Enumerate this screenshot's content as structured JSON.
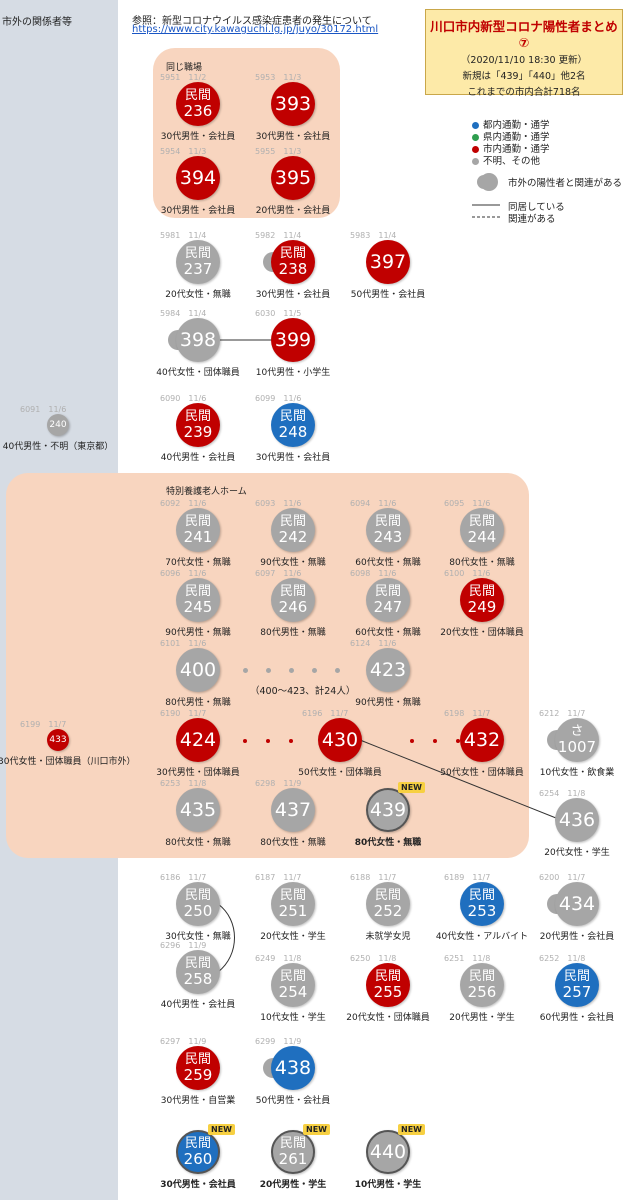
{
  "sidebar": {
    "title": "市外の関係者等"
  },
  "reference": {
    "label": "参照：新型コロナウイルス感染症患者の発生について",
    "url": "https://www.city.kawaguchi.lg.jp/juyo/30172.html"
  },
  "header": {
    "title": "川口市内新型コロナ陽性者まとめ⑦",
    "updated": "（2020/11/10 18:30 更新）",
    "new_line": "新規は「439」「440」他2名",
    "total_line": "これまでの市内合計718名"
  },
  "legend": {
    "items": [
      {
        "color": "#1f6fbf",
        "code": "●青",
        "text": "都内通勤・通学"
      },
      {
        "color": "#2e9e4f",
        "code": "●緑",
        "text": "県内通勤・通学"
      },
      {
        "color": "#c00000",
        "code": "●赤",
        "text": "市内通勤・通学"
      },
      {
        "color": "#a6a6a6",
        "code": "●灰",
        "text": "不明、その他"
      }
    ],
    "outside": "市外の陽性者と関連がある",
    "cohabit": "同居している",
    "related": "関連がある"
  },
  "panels": {
    "workplace": "同じ職場",
    "nursing_home": "特別養護老人ホーム"
  },
  "range_note": "（400〜423、計24人）",
  "new_badge": "NEW",
  "nodes": [
    {
      "id": "236",
      "caseid": "5951",
      "date": "11/2",
      "prefix": "民間",
      "color": "red",
      "cap": "30代男性・会社員"
    },
    {
      "id": "393",
      "caseid": "5953",
      "date": "11/3",
      "prefix": "",
      "color": "red",
      "cap": "30代男性・会社員"
    },
    {
      "id": "394",
      "caseid": "5954",
      "date": "11/3",
      "prefix": "",
      "color": "red",
      "cap": "30代男性・会社員"
    },
    {
      "id": "395",
      "caseid": "5955",
      "date": "11/3",
      "prefix": "",
      "color": "red",
      "cap": "20代男性・会社員"
    },
    {
      "id": "237",
      "caseid": "5981",
      "date": "11/4",
      "prefix": "民間",
      "color": "gray",
      "cap": "20代女性・無職"
    },
    {
      "id": "238",
      "caseid": "5982",
      "date": "11/4",
      "prefix": "民間",
      "color": "red",
      "cap": "30代男性・会社員",
      "tail": true
    },
    {
      "id": "397",
      "caseid": "5983",
      "date": "11/4",
      "prefix": "",
      "color": "red",
      "cap": "50代男性・会社員"
    },
    {
      "id": "398",
      "caseid": "5984",
      "date": "11/4",
      "prefix": "",
      "color": "gray",
      "cap": "40代女性・団体職員",
      "tail": true
    },
    {
      "id": "399",
      "caseid": "6030",
      "date": "11/5",
      "prefix": "",
      "color": "red",
      "cap": "10代男性・小学生"
    },
    {
      "id": "240",
      "caseid": "6091",
      "date": "11/6",
      "prefix": "民間",
      "color": "gray",
      "cap": "40代男性・不明（東京都）",
      "small": true
    },
    {
      "id": "239",
      "caseid": "6090",
      "date": "11/6",
      "prefix": "民間",
      "color": "red",
      "cap": "40代男性・会社員"
    },
    {
      "id": "248",
      "caseid": "6099",
      "date": "11/6",
      "prefix": "民間",
      "color": "blue",
      "cap": "30代男性・会社員"
    },
    {
      "id": "241",
      "caseid": "6092",
      "date": "11/6",
      "prefix": "民間",
      "color": "gray",
      "cap": "70代女性・無職"
    },
    {
      "id": "242",
      "caseid": "6093",
      "date": "11/6",
      "prefix": "民間",
      "color": "gray",
      "cap": "90代女性・無職"
    },
    {
      "id": "243",
      "caseid": "6094",
      "date": "11/6",
      "prefix": "民間",
      "color": "gray",
      "cap": "60代女性・無職"
    },
    {
      "id": "244",
      "caseid": "6095",
      "date": "11/6",
      "prefix": "民間",
      "color": "gray",
      "cap": "80代女性・無職"
    },
    {
      "id": "245",
      "caseid": "6096",
      "date": "11/6",
      "prefix": "民間",
      "color": "gray",
      "cap": "90代男性・無職"
    },
    {
      "id": "246",
      "caseid": "6097",
      "date": "11/6",
      "prefix": "民間",
      "color": "gray",
      "cap": "80代男性・無職"
    },
    {
      "id": "247",
      "caseid": "6098",
      "date": "11/6",
      "prefix": "民間",
      "color": "gray",
      "cap": "60代女性・無職"
    },
    {
      "id": "249",
      "caseid": "6100",
      "date": "11/6",
      "prefix": "民間",
      "color": "red",
      "cap": "20代女性・団体職員"
    },
    {
      "id": "400",
      "caseid": "6101",
      "date": "11/6",
      "prefix": "",
      "color": "gray",
      "cap": "80代男性・無職"
    },
    {
      "id": "423",
      "caseid": "6124",
      "date": "11/6",
      "prefix": "",
      "color": "gray",
      "cap": "90代男性・無職"
    },
    {
      "id": "433",
      "caseid": "6199",
      "date": "11/7",
      "prefix": "",
      "color": "red",
      "cap": "30代女性・団体職員（川口市外）",
      "small": true
    },
    {
      "id": "424",
      "caseid": "6190",
      "date": "11/7",
      "prefix": "",
      "color": "red",
      "cap": "30代男性・団体職員"
    },
    {
      "id": "430",
      "caseid": "6196",
      "date": "11/7",
      "prefix": "",
      "color": "red",
      "cap": "50代女性・団体職員"
    },
    {
      "id": "432",
      "caseid": "6198",
      "date": "11/7",
      "prefix": "",
      "color": "red",
      "cap": "50代女性・団体職員"
    },
    {
      "id": "1007",
      "caseid": "6212",
      "date": "11/7",
      "prefix": "さ",
      "color": "gray",
      "cap": "10代女性・飲食業",
      "tail": true
    },
    {
      "id": "435",
      "caseid": "6253",
      "date": "11/8",
      "prefix": "",
      "color": "gray",
      "cap": "80代女性・無職"
    },
    {
      "id": "437",
      "caseid": "6298",
      "date": "11/9",
      "prefix": "",
      "color": "gray",
      "cap": "80代女性・無職"
    },
    {
      "id": "439",
      "caseid": "",
      "date": "",
      "prefix": "",
      "color": "gray",
      "cap": "80代女性・無職",
      "new": true
    },
    {
      "id": "436",
      "caseid": "6254",
      "date": "11/8",
      "prefix": "",
      "color": "gray",
      "cap": "20代女性・学生"
    },
    {
      "id": "250",
      "caseid": "6186",
      "date": "11/7",
      "prefix": "民間",
      "color": "gray",
      "cap": "30代女性・無職"
    },
    {
      "id": "251",
      "caseid": "6187",
      "date": "11/7",
      "prefix": "民間",
      "color": "gray",
      "cap": "20代女性・学生"
    },
    {
      "id": "252",
      "caseid": "6188",
      "date": "11/7",
      "prefix": "民間",
      "color": "gray",
      "cap": "未就学女児"
    },
    {
      "id": "253",
      "caseid": "6189",
      "date": "11/7",
      "prefix": "民間",
      "color": "blue",
      "cap": "40代女性・アルバイト"
    },
    {
      "id": "434",
      "caseid": "6200",
      "date": "11/7",
      "prefix": "",
      "color": "gray",
      "cap": "20代男性・会社員",
      "tail": true
    },
    {
      "id": "258",
      "caseid": "6296",
      "date": "11/9",
      "prefix": "民間",
      "color": "gray",
      "cap": "40代男性・会社員"
    },
    {
      "id": "254",
      "caseid": "6249",
      "date": "11/8",
      "prefix": "民間",
      "color": "gray",
      "cap": "10代女性・学生"
    },
    {
      "id": "255",
      "caseid": "6250",
      "date": "11/8",
      "prefix": "民間",
      "color": "red",
      "cap": "20代女性・団体職員"
    },
    {
      "id": "256",
      "caseid": "6251",
      "date": "11/8",
      "prefix": "民間",
      "color": "gray",
      "cap": "20代男性・学生"
    },
    {
      "id": "257",
      "caseid": "6252",
      "date": "11/8",
      "prefix": "民間",
      "color": "blue",
      "cap": "60代男性・会社員"
    },
    {
      "id": "259",
      "caseid": "6297",
      "date": "11/9",
      "prefix": "民間",
      "color": "red",
      "cap": "30代男性・自営業"
    },
    {
      "id": "438",
      "caseid": "6299",
      "date": "11/9",
      "prefix": "",
      "color": "blue",
      "cap": "50代男性・会社員",
      "tail": true
    },
    {
      "id": "260",
      "caseid": "",
      "date": "",
      "prefix": "民間",
      "color": "blue",
      "cap": "30代男性・会社員",
      "new": true
    },
    {
      "id": "261",
      "caseid": "",
      "date": "",
      "prefix": "民間",
      "color": "gray",
      "cap": "20代男性・学生",
      "new": true
    },
    {
      "id": "440",
      "caseid": "",
      "date": "",
      "prefix": "",
      "color": "gray",
      "cap": "10代男性・学生",
      "new": true
    }
  ]
}
